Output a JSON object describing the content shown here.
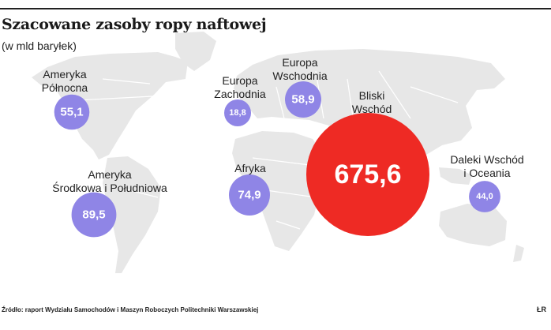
{
  "header": {
    "title": "Szacowane zasoby ropy naftowej",
    "subtitle": "(w mld baryłek)"
  },
  "footer": {
    "source": "Źródło: raport Wydziału Samochodów i Maszyn Roboczych Politechniki Warszawskiej",
    "brand": "ŁR"
  },
  "colors": {
    "bubble": "#8f85e6",
    "bubble_highlight": "#ee2a24",
    "land": "#e7e7e7",
    "border": "#ffffff"
  },
  "chart_data": {
    "type": "bubble-map",
    "title": "Szacowane zasoby ropy naftowej",
    "subtitle": "(w mld baryłek)",
    "unit": "mld baryłek",
    "regions": [
      {
        "name": "Ameryka\nPółnocna",
        "value": 55.1,
        "value_label": "55,1"
      },
      {
        "name": "Ameryka\nŚrodkowa i Południowa",
        "value": 89.5,
        "value_label": "89,5"
      },
      {
        "name": "Europa\nZachodnia",
        "value": 18.8,
        "value_label": "18,8"
      },
      {
        "name": "Europa\nWschodnia",
        "value": 58.9,
        "value_label": "58,9"
      },
      {
        "name": "Afryka",
        "value": 74.9,
        "value_label": "74,9"
      },
      {
        "name": "Bliski\nWschód",
        "value": 675.6,
        "value_label": "675,6"
      },
      {
        "name": "Daleki Wschód\ni Oceania",
        "value": 44.0,
        "value_label": "44,0"
      }
    ]
  }
}
